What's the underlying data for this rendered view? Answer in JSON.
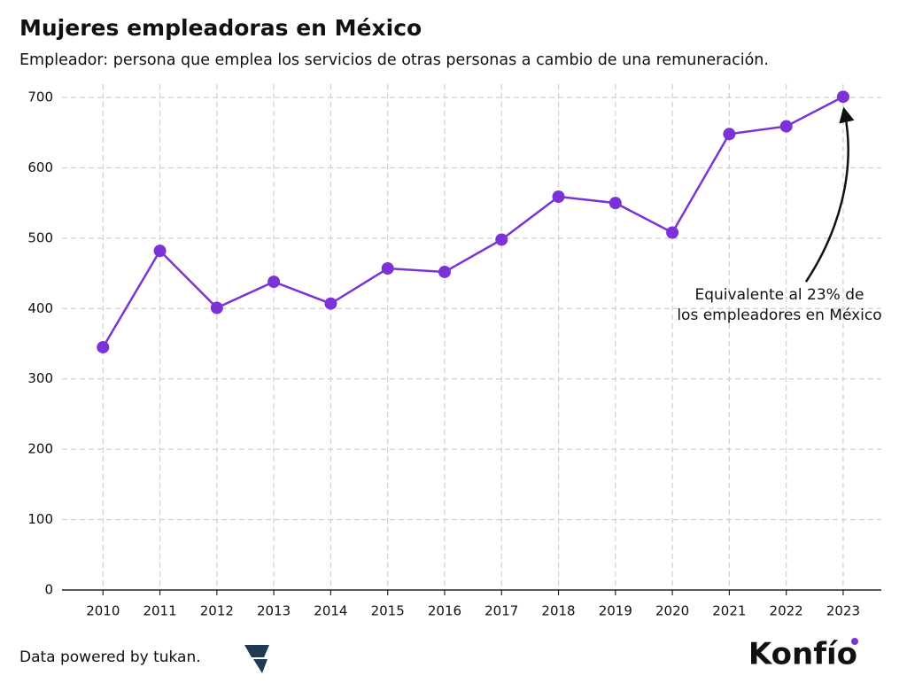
{
  "chart_data": {
    "type": "line",
    "title": "Mujeres empleadoras en México",
    "subtitle": "Empleador: persona que emplea los servicios de otras personas a cambio de una remuneración.",
    "x": [
      2010,
      2011,
      2012,
      2013,
      2014,
      2015,
      2016,
      2017,
      2018,
      2019,
      2020,
      2021,
      2022,
      2023
    ],
    "series": [
      {
        "color": "#7b33d8",
        "values": [
          345,
          482,
          401,
          438,
          407,
          457,
          452,
          498,
          559,
          550,
          508,
          648,
          659,
          701
        ]
      }
    ],
    "xlim": [
      2009.28,
      2023.67
    ],
    "xticks": [
      2010,
      2011,
      2012,
      2013,
      2014,
      2015,
      2016,
      2017,
      2018,
      2019,
      2020,
      2021,
      2022,
      2023
    ],
    "ylim": [
      0,
      700
    ],
    "yticks": [
      0,
      100,
      200,
      300,
      400,
      500,
      600,
      700
    ],
    "grid": true,
    "annotation": [
      "Equivalente al 23% de",
      "los empleadores en México"
    ]
  },
  "footer": {
    "source": "Data powered by tukan.",
    "brand": "Konfío"
  }
}
